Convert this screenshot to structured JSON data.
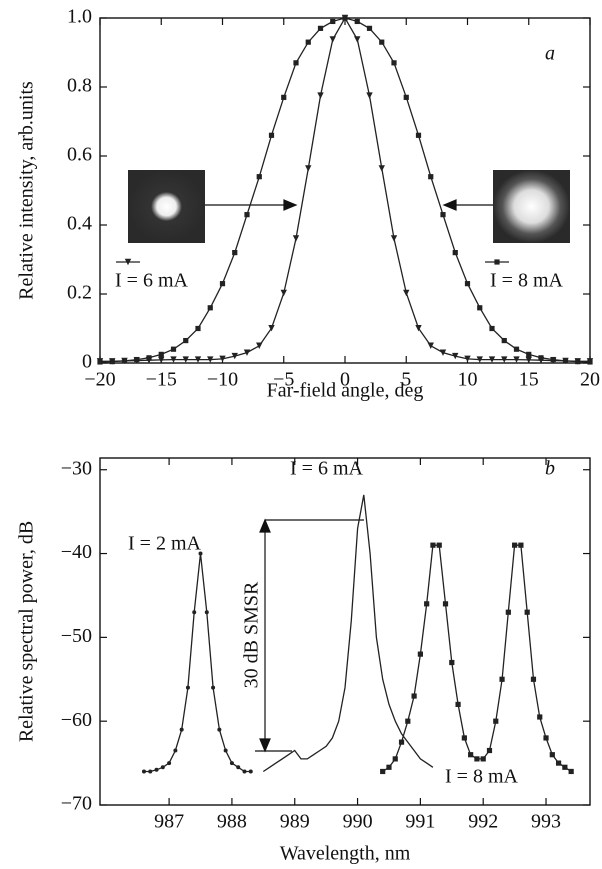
{
  "chart_data": [
    {
      "type": "line",
      "label": "a",
      "xlabel": "Far-field angle, deg",
      "ylabel": "Relative intensity, arb.units",
      "xlim": [
        -20,
        20
      ],
      "ylim": [
        0,
        1
      ],
      "xticks": [
        {
          "value": -20,
          "label": "−20"
        },
        {
          "value": -15,
          "label": "−15"
        },
        {
          "value": -10,
          "label": "−10"
        },
        {
          "value": -5,
          "label": "−5"
        },
        0,
        5,
        10,
        15,
        20
      ],
      "yticks": [
        0,
        0.2,
        0.4,
        0.6,
        0.8,
        {
          "value": 1,
          "label": "1.0"
        }
      ],
      "x": [
        -20,
        -19,
        -18,
        -17,
        -16,
        -15,
        -14,
        -13,
        -12,
        -11,
        -10,
        -9,
        -8,
        -7,
        -6,
        -5,
        -4,
        -3,
        -2,
        -1,
        0,
        1,
        2,
        3,
        4,
        5,
        6,
        7,
        8,
        9,
        10,
        11,
        12,
        13,
        14,
        15,
        16,
        17,
        18,
        19,
        20
      ],
      "series": [
        {
          "name": "I = 6 mA",
          "color": "#222222",
          "marker": "triangle",
          "values": [
            0.005,
            0.005,
            0.006,
            0.007,
            0.008,
            0.009,
            0.01,
            0.01,
            0.01,
            0.01,
            0.012,
            0.02,
            0.03,
            0.05,
            0.101,
            0.203,
            0.361,
            0.564,
            0.775,
            0.938,
            1.0,
            0.938,
            0.775,
            0.564,
            0.361,
            0.203,
            0.101,
            0.05,
            0.03,
            0.02,
            0.012,
            0.01,
            0.01,
            0.01,
            0.01,
            0.009,
            0.008,
            0.007,
            0.006,
            0.005,
            0.005
          ]
        },
        {
          "name": "I = 8 mA",
          "color": "#222222",
          "marker": "square",
          "values": [
            0.003,
            0.004,
            0.006,
            0.01,
            0.015,
            0.025,
            0.04,
            0.065,
            0.1,
            0.16,
            0.23,
            0.32,
            0.43,
            0.54,
            0.66,
            0.77,
            0.87,
            0.93,
            0.97,
            0.99,
            1.0,
            0.99,
            0.97,
            0.93,
            0.87,
            0.77,
            0.66,
            0.54,
            0.43,
            0.32,
            0.23,
            0.16,
            0.1,
            0.065,
            0.04,
            0.025,
            0.015,
            0.01,
            0.006,
            0.004,
            0.003
          ]
        }
      ]
    },
    {
      "type": "line",
      "label": "b",
      "annotation": "30 dB SMSR",
      "xlabel": "Wavelength, nm",
      "ylabel": "Relative spectral power, dB",
      "xlim": [
        985.9,
        993.7
      ],
      "ylim": [
        -70,
        -28.6
      ],
      "xticks": [
        987,
        988,
        989,
        990,
        991,
        992,
        993
      ],
      "yticks": [
        {
          "value": -70,
          "label": "−70"
        },
        {
          "value": -60,
          "label": "−60"
        },
        {
          "value": -50,
          "label": "−50"
        },
        {
          "value": -40,
          "label": "−40"
        },
        {
          "value": -30,
          "label": "−30"
        }
      ],
      "series": [
        {
          "name": "I = 2 mA",
          "color": "#222222",
          "marker": "circle",
          "x": [
            986.6,
            986.7,
            986.8,
            986.9,
            987.0,
            987.1,
            987.2,
            987.3,
            987.4,
            987.5,
            987.6,
            987.7,
            987.8,
            987.9,
            988.0,
            988.1,
            988.2,
            988.3
          ],
          "values": [
            -66,
            -66,
            -65.8,
            -65.5,
            -65,
            -63.5,
            -61,
            -56,
            -47,
            -40,
            -47,
            -56,
            -61,
            -63.5,
            -65,
            -65.5,
            -66,
            -66
          ]
        },
        {
          "name": "I = 6 mA",
          "color": "#222222",
          "marker": "none",
          "x": [
            988.5,
            988.6,
            988.7,
            988.8,
            988.9,
            989.0,
            989.1,
            989.2,
            989.3,
            989.4,
            989.5,
            989.6,
            989.7,
            989.8,
            989.9,
            990.0,
            990.1,
            990.2,
            990.3,
            990.4,
            990.5,
            990.6,
            990.7,
            990.8,
            990.9,
            991.0,
            991.1,
            991.2
          ],
          "values": [
            -66,
            -65.5,
            -65,
            -64.5,
            -64,
            -63.5,
            -64.5,
            -64.5,
            -64,
            -63.5,
            -63,
            -62,
            -60,
            -56,
            -48,
            -37,
            -33,
            -40,
            -50,
            -55,
            -58,
            -60,
            -61.5,
            -62.5,
            -63.5,
            -64.5,
            -65,
            -65.5
          ]
        },
        {
          "name": "I = 8 mA",
          "color": "#222222",
          "marker": "square",
          "x": [
            990.4,
            990.5,
            990.6,
            990.7,
            990.8,
            990.9,
            991.0,
            991.1,
            991.2,
            991.3,
            991.4,
            991.5,
            991.6,
            991.7,
            991.8,
            991.9,
            992.0,
            992.1,
            992.2,
            992.3,
            992.4,
            992.5,
            992.6,
            992.7,
            992.8,
            992.9,
            993.0,
            993.1,
            993.2,
            993.3,
            993.4
          ],
          "values": [
            -66,
            -65.5,
            -64.5,
            -62.5,
            -60,
            -57,
            -52,
            -46,
            -39,
            -39,
            -46,
            -53,
            -58,
            -62,
            -64,
            -64.5,
            -64.5,
            -63.5,
            -60,
            -55,
            -47,
            -39,
            -39,
            -47,
            -55,
            -59.5,
            -62,
            -64,
            -65,
            -65.5,
            -66
          ]
        }
      ]
    }
  ]
}
